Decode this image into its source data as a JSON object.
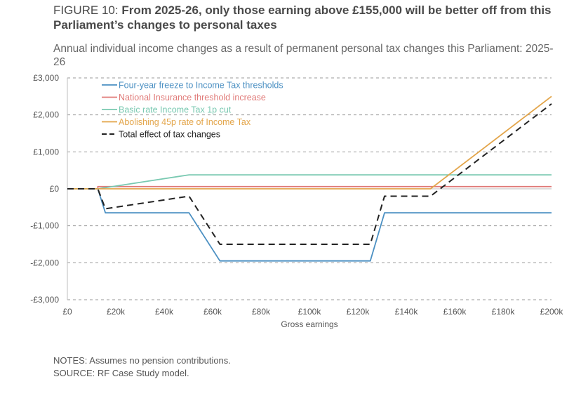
{
  "header": {
    "figure_label": "FIGURE 10:",
    "title": "From 2025-26, only those earning above £155,000 will be better off from this Parliament’s changes to personal taxes",
    "subtitle": "Annual individual income changes as a result of permanent personal tax changes this Parliament: 2025-26"
  },
  "notes": {
    "notes": "NOTES: Assumes no pension contributions.",
    "source": "SOURCE: RF Case Study model."
  },
  "chart_data": {
    "type": "line",
    "title": "Annual individual income changes as a result of permanent personal tax changes this Parliament: 2025-26",
    "xlabel": "Gross earnings",
    "ylabel": "",
    "xlim": [
      0,
      200000
    ],
    "ylim": [
      -3000,
      3000
    ],
    "x_ticks": [
      0,
      20000,
      40000,
      60000,
      80000,
      100000,
      120000,
      140000,
      160000,
      180000,
      200000
    ],
    "x_tick_labels": [
      "£0",
      "£20k",
      "£40k",
      "£60k",
      "£80k",
      "£100k",
      "£120k",
      "£140k",
      "£160k",
      "£180k",
      "£200k"
    ],
    "y_ticks": [
      -3000,
      -2000,
      -1000,
      0,
      1000,
      2000,
      3000
    ],
    "y_tick_labels": [
      "-£3,000",
      "-£2,000",
      "-£1,000",
      "£0",
      "£1,000",
      "£2,000",
      "£3,000"
    ],
    "grid": "horizontal dashed",
    "legend_position": "top-left",
    "series": [
      {
        "name": "Four-year freeze to Income Tax thresholds",
        "color": "#4a8fc2",
        "dash": "solid",
        "points": [
          [
            0,
            0
          ],
          [
            12570,
            0
          ],
          [
            15700,
            -650
          ],
          [
            50270,
            -650
          ],
          [
            63000,
            -1950
          ],
          [
            125140,
            -1950
          ],
          [
            131000,
            -650
          ],
          [
            200000,
            -650
          ]
        ]
      },
      {
        "name": "National Insurance threshold increase",
        "color": "#e07a78",
        "dash": "solid",
        "points": [
          [
            0,
            0
          ],
          [
            12570,
            0
          ],
          [
            12570,
            60
          ],
          [
            200000,
            60
          ]
        ]
      },
      {
        "name": "Basic rate Income Tax 1p cut",
        "color": "#79c9b1",
        "dash": "solid",
        "points": [
          [
            0,
            0
          ],
          [
            12570,
            0
          ],
          [
            50270,
            377
          ],
          [
            200000,
            377
          ]
        ]
      },
      {
        "name": "Abolishing 45p rate of Income Tax",
        "color": "#e3a54a",
        "dash": "solid",
        "points": [
          [
            0,
            0
          ],
          [
            150000,
            0
          ],
          [
            200000,
            2500
          ]
        ]
      },
      {
        "name": "Total effect of tax changes",
        "color": "#222222",
        "dash": "dashed",
        "points": [
          [
            0,
            0
          ],
          [
            12570,
            0
          ],
          [
            15700,
            -540
          ],
          [
            50270,
            -200
          ],
          [
            63000,
            -1500
          ],
          [
            125140,
            -1500
          ],
          [
            131000,
            -200
          ],
          [
            150000,
            -200
          ],
          [
            200000,
            2300
          ]
        ]
      }
    ]
  }
}
